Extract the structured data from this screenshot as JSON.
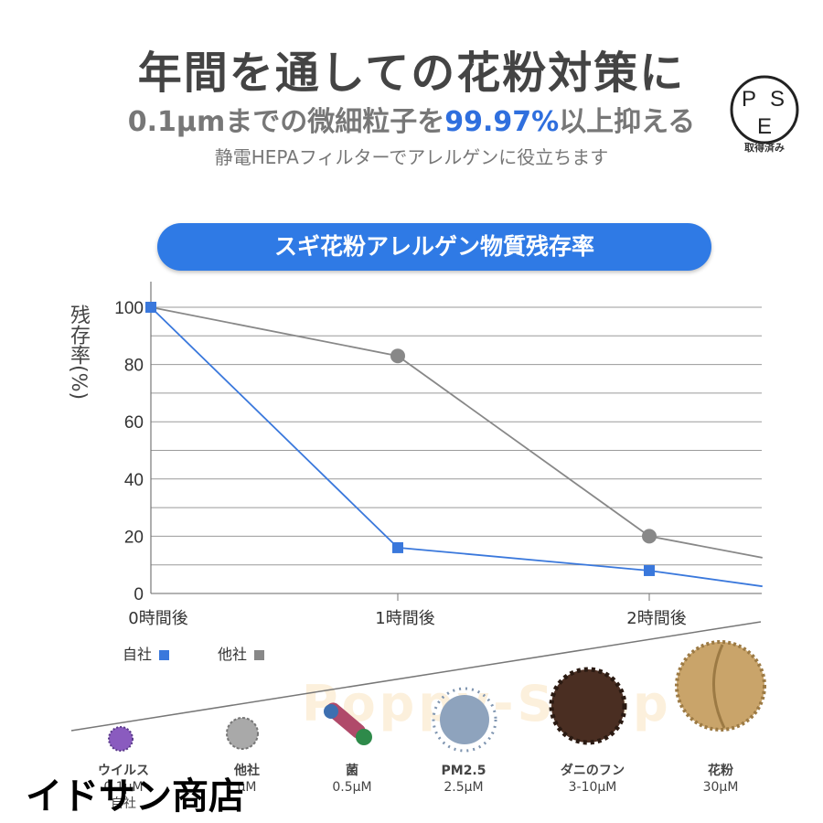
{
  "header": {
    "title": "年間を通しての花粉対策に",
    "sub_prefix": "0.1μmまでの微細粒子を",
    "sub_highlight": "99.97%",
    "sub_suffix": "以上抑える",
    "note": "静電HEPAフィルターでアレルゲンに役立ちます"
  },
  "badge": {
    "letters": [
      "P",
      "S",
      "E"
    ],
    "label": "取得済み"
  },
  "banner": "スギ花粉アレルゲン物質残存率",
  "chart_data": {
    "type": "line",
    "title": "スギ花粉アレルゲン物質残存率",
    "ylabel": "残存率(%)",
    "xlabel": "",
    "categories": [
      "0時間後",
      "1時間後",
      "2時間後"
    ],
    "ylim": [
      0,
      100
    ],
    "yticks": [
      0,
      20,
      40,
      60,
      80,
      100
    ],
    "grid": true,
    "legend_position": "bottom-left",
    "series": [
      {
        "name": "自社",
        "x": [
          0,
          1,
          2,
          2.45
        ],
        "values": [
          100,
          16,
          8,
          2.5
        ],
        "color": "#3a78dc",
        "marker": "square"
      },
      {
        "name": "他社",
        "x": [
          0,
          1,
          2,
          2.45
        ],
        "values": [
          100,
          83,
          20,
          12.5
        ],
        "color": "#888888",
        "marker": "circle"
      }
    ]
  },
  "particles": [
    {
      "name": "ウイルス",
      "size": "0.1μM",
      "extra": "自社",
      "color": "#8a5bbf"
    },
    {
      "name": "他社",
      "size": "μM",
      "color": "#9a9a9a"
    },
    {
      "name": "菌",
      "size": "0.5μM",
      "color": "#b04a6a"
    },
    {
      "name": "PM2.5",
      "size": "2.5μM",
      "color": "#7f95b0"
    },
    {
      "name": "ダニのフン",
      "size": "3-10μM",
      "color": "#4a2e22"
    },
    {
      "name": "花粉",
      "size": "30μM",
      "color": "#c9a46a"
    }
  ],
  "watermark": "Poppy-Shop",
  "shop_name": "イドサン商店"
}
